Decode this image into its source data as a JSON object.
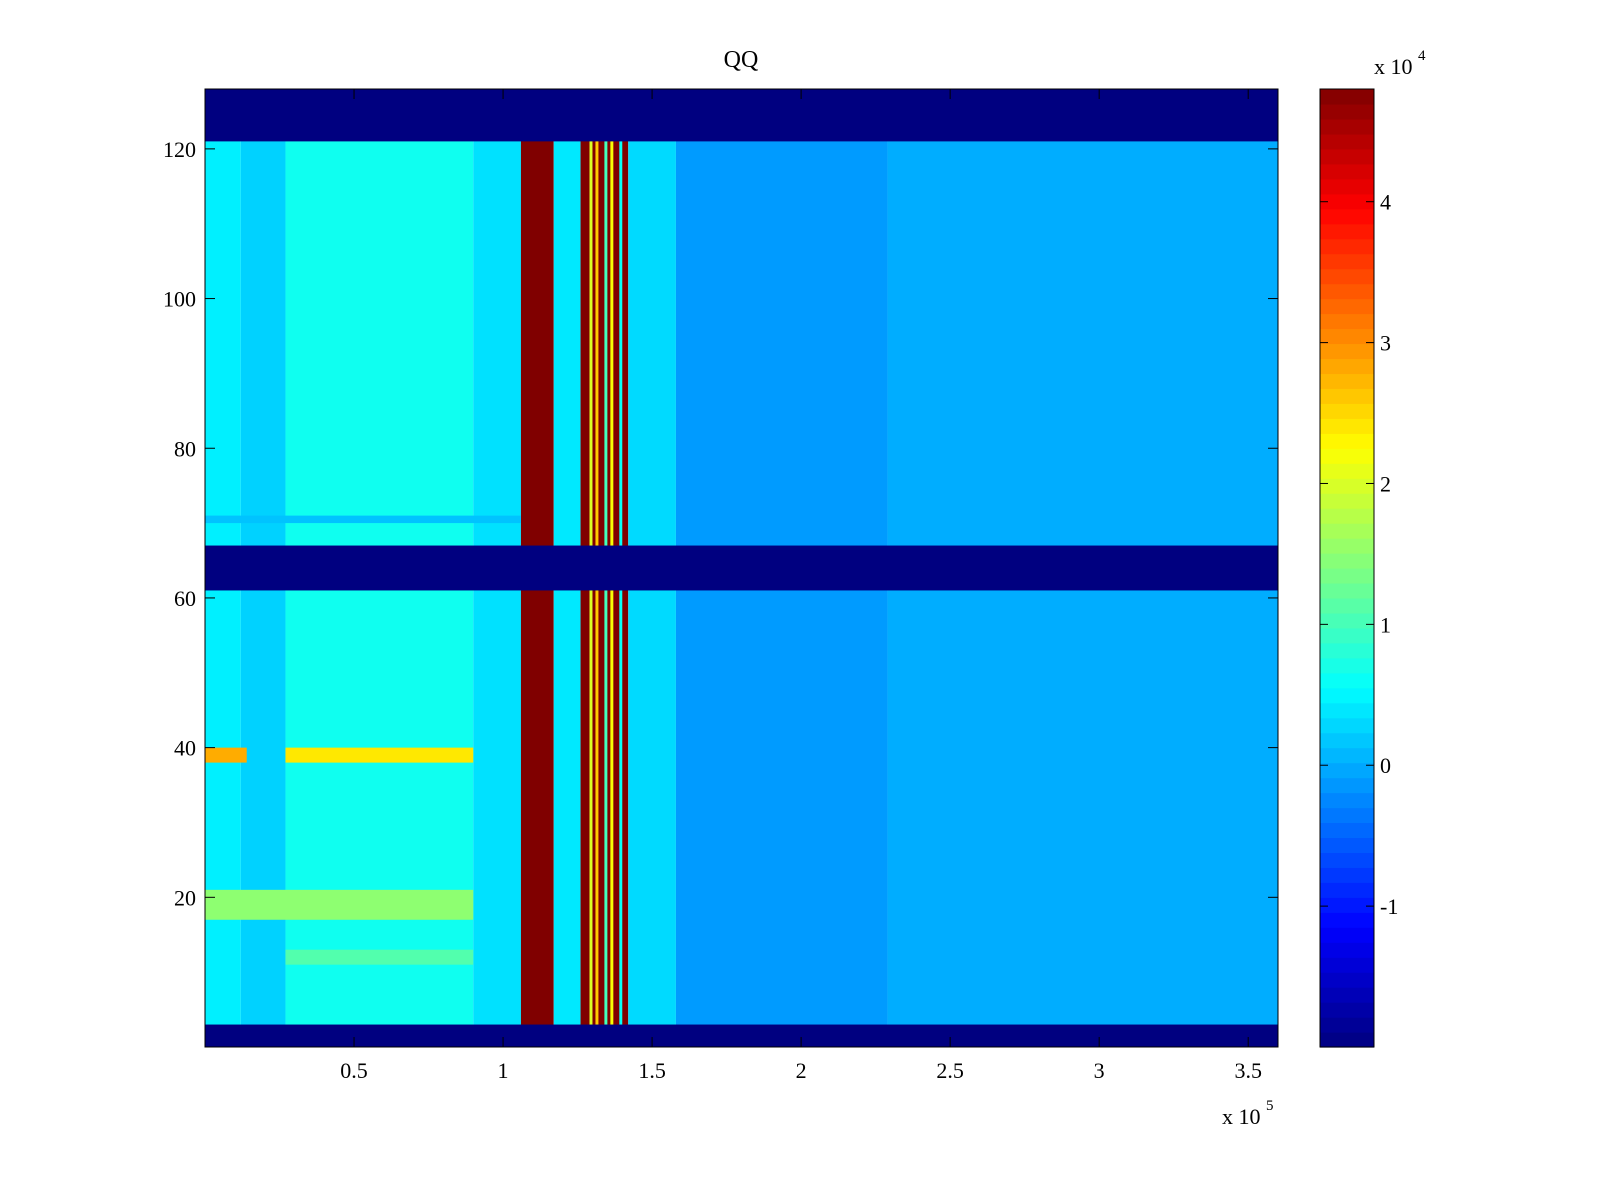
{
  "chart_data": {
    "type": "heatmap",
    "title": "QQ",
    "xlabel": "",
    "ylabel": "",
    "xlim": [
      0,
      360000
    ],
    "ylim": [
      0,
      128
    ],
    "x_ticks": [
      50000,
      100000,
      150000,
      200000,
      250000,
      300000,
      350000
    ],
    "x_tick_labels": [
      "0.5",
      "1",
      "1.5",
      "2",
      "2.5",
      "3",
      "3.5"
    ],
    "x_multiplier": "x 10",
    "x_multiplier_exp": "5",
    "y_ticks": [
      20,
      40,
      60,
      80,
      100,
      120
    ],
    "y_tick_labels": [
      "20",
      "40",
      "60",
      "80",
      "100",
      "120"
    ],
    "colorbar": {
      "colormap": "jet",
      "clim": [
        -20000,
        48000
      ],
      "ticks": [
        -10000,
        0,
        10000,
        20000,
        30000,
        40000
      ],
      "tick_labels": [
        "-1",
        "0",
        "1",
        "2",
        "3",
        "4"
      ],
      "multiplier": "x 10",
      "multiplier_exp": "4"
    },
    "masked_row_bands": [
      [
        0,
        3
      ],
      [
        61,
        67
      ],
      [
        121,
        128
      ]
    ],
    "masked_value": -20000,
    "column_segments": [
      {
        "x": [
          0,
          12000
        ],
        "value": 4500
      },
      {
        "x": [
          12000,
          27000
        ],
        "value": 2500
      },
      {
        "x": [
          27000,
          90000
        ],
        "value": 6500
      },
      {
        "x": [
          90000,
          106000
        ],
        "value": 3500
      },
      {
        "x": [
          106000,
          117000
        ],
        "value": 48000
      },
      {
        "x": [
          117000,
          126000
        ],
        "value": 4000
      },
      {
        "x": [
          126000,
          142000
        ],
        "value": 48000
      },
      {
        "x": [
          142000,
          158000
        ],
        "value": 3000
      },
      {
        "x": [
          158000,
          229000
        ],
        "value": -1200
      },
      {
        "x": [
          229000,
          360000
        ],
        "value": 0
      }
    ],
    "stripe_columns": [
      {
        "x": 129500,
        "value": 20000
      },
      {
        "x": 131500,
        "value": 26000
      },
      {
        "x": 134500,
        "value": 10000
      },
      {
        "x": 136500,
        "value": 22000
      },
      {
        "x": 139500,
        "value": 6000
      }
    ],
    "highlight_rows": [
      {
        "y": [
          38,
          40
        ],
        "x": [
          0,
          14000
        ],
        "value": 28000
      },
      {
        "y": [
          38,
          40
        ],
        "x": [
          27000,
          90000
        ],
        "value": 24000
      },
      {
        "y": [
          17,
          21
        ],
        "x": [
          0,
          90000
        ],
        "value": 15000
      },
      {
        "y": [
          11,
          13
        ],
        "x": [
          27000,
          90000
        ],
        "value": 11000
      },
      {
        "y": [
          70,
          71
        ],
        "x": [
          0,
          106000
        ],
        "value": 1500
      }
    ]
  }
}
